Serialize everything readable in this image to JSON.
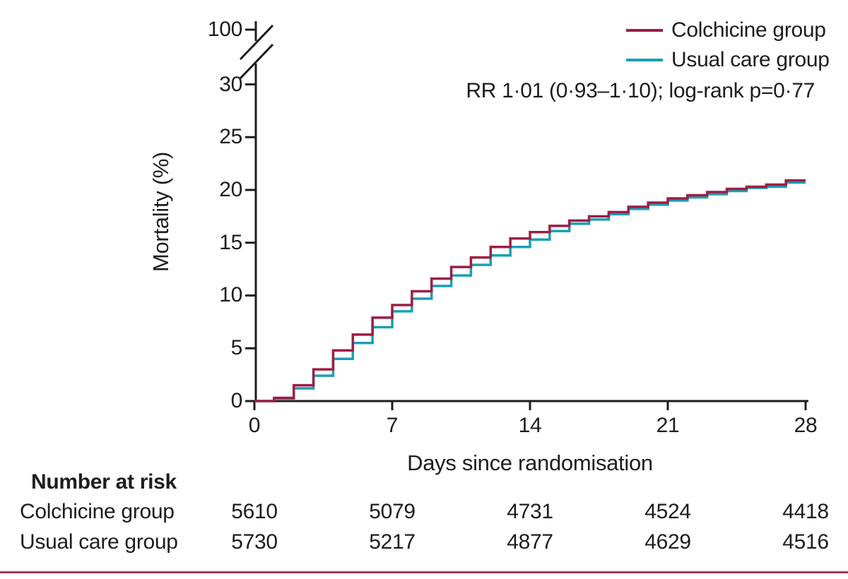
{
  "figure": {
    "text_color": "#1d1d1b",
    "bottom_rule_color": "#a5395f"
  },
  "chart_data": {
    "type": "line",
    "step": true,
    "title": "",
    "xlabel": "Days since randomisation",
    "ylabel": "Mortality (%)",
    "xlim": [
      0,
      28
    ],
    "ylim": [
      0,
      30
    ],
    "y_axis_break": true,
    "y_break_label": "100",
    "x_ticks": [
      0,
      7,
      14,
      21,
      28
    ],
    "x_tick_labels": [
      "0",
      "7",
      "14",
      "21",
      "28"
    ],
    "y_ticks": [
      0,
      5,
      10,
      15,
      20,
      25,
      30
    ],
    "y_tick_labels": [
      "0",
      "5",
      "10",
      "15",
      "20",
      "25",
      "30"
    ],
    "grid": false,
    "legend_position": "top-right",
    "annotation": "RR 1·01 (0·93–1·10); log-rank p=0·77",
    "x_days": [
      0,
      1,
      2,
      3,
      4,
      5,
      6,
      7,
      8,
      9,
      10,
      11,
      12,
      13,
      14,
      15,
      16,
      17,
      18,
      19,
      20,
      21,
      22,
      23,
      24,
      25,
      26,
      27,
      28
    ],
    "series": [
      {
        "name": "Colchicine group",
        "color": "#9e1e45",
        "values": [
          0,
          0.3,
          1.5,
          3.0,
          4.8,
          6.3,
          7.9,
          9.1,
          10.4,
          11.6,
          12.7,
          13.6,
          14.6,
          15.4,
          16.0,
          16.6,
          17.1,
          17.5,
          17.9,
          18.4,
          18.8,
          19.2,
          19.5,
          19.8,
          20.1,
          20.3,
          20.5,
          20.9,
          20.9
        ]
      },
      {
        "name": "Usual care group",
        "color": "#19a0b4",
        "values": [
          0,
          0.25,
          1.2,
          2.4,
          4.0,
          5.5,
          7.0,
          8.5,
          9.7,
          10.9,
          11.9,
          12.9,
          13.8,
          14.6,
          15.3,
          16.1,
          16.8,
          17.2,
          17.7,
          18.2,
          18.6,
          19.0,
          19.3,
          19.6,
          19.9,
          20.2,
          20.3,
          20.7,
          20.7
        ]
      }
    ]
  },
  "risk_table": {
    "header": "Number at risk",
    "rows": [
      {
        "label": "Colchicine group",
        "values": [
          "5610",
          "5079",
          "4731",
          "4524",
          "4418"
        ]
      },
      {
        "label": "Usual care group",
        "values": [
          "5730",
          "5217",
          "4877",
          "4629",
          "4516"
        ]
      }
    ]
  }
}
